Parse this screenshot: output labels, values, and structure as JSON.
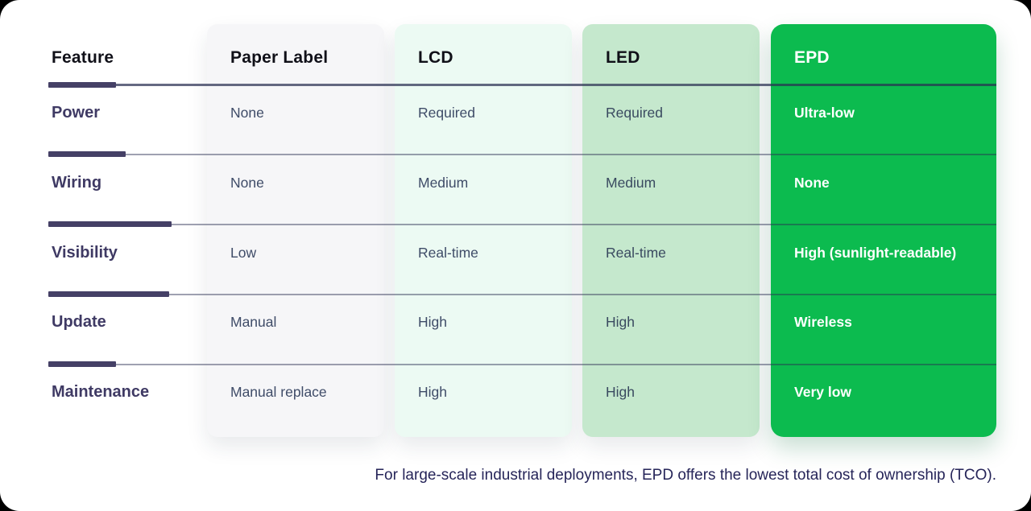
{
  "table": {
    "feature_header": "Feature",
    "row_headers": [
      "Power",
      "Wiring",
      "Visibility",
      "Update",
      "Maintenance"
    ],
    "columns": [
      {
        "label": "Paper Label",
        "bg": "#f6f6f8",
        "values": [
          "None",
          "None",
          "Low",
          "Manual",
          "Manual replace"
        ]
      },
      {
        "label": "LCD",
        "bg": "#ecfaf3",
        "values": [
          "Required",
          "Medium",
          "Real-time",
          "High",
          "High"
        ]
      },
      {
        "label": "LED",
        "bg": "#c5e8cd",
        "values": [
          "Required",
          "Medium",
          "Real-time",
          "High",
          "High"
        ]
      },
      {
        "label": "EPD",
        "bg": "#0cbb4f",
        "values": [
          "Ultra-low",
          "None",
          "High (sunlight-readable)",
          "Wireless",
          "Very low"
        ]
      }
    ],
    "accent_bar_color": "#454066",
    "accent_bar_widths": [
      "84px",
      "96px",
      "153px",
      "150px",
      "84px"
    ],
    "highlight_column": "EPD",
    "epd_text_color": "#ffffff",
    "row_label_color": "#3f3a64"
  },
  "footer": {
    "note": "For large-scale industrial deployments, EPD offers the lowest total cost of ownership (TCO)."
  },
  "chart_data": {
    "type": "table",
    "columns": [
      "Feature",
      "Paper Label",
      "LCD",
      "LED",
      "EPD"
    ],
    "rows": [
      [
        "Power",
        "None",
        "Required",
        "Required",
        "Ultra-low"
      ],
      [
        "Wiring",
        "None",
        "Medium",
        "Medium",
        "None"
      ],
      [
        "Visibility",
        "Low",
        "Real-time",
        "Real-time",
        "High (sunlight-readable)"
      ],
      [
        "Update",
        "Manual",
        "High",
        "High",
        "Wireless"
      ],
      [
        "Maintenance",
        "Manual replace",
        "High",
        "High",
        "Very low"
      ]
    ],
    "note": "For large-scale industrial deployments, EPD offers the lowest total cost of ownership (TCO).",
    "legend_position": "none",
    "highlight": "EPD column emphasized in green (#0cbb4f)"
  }
}
